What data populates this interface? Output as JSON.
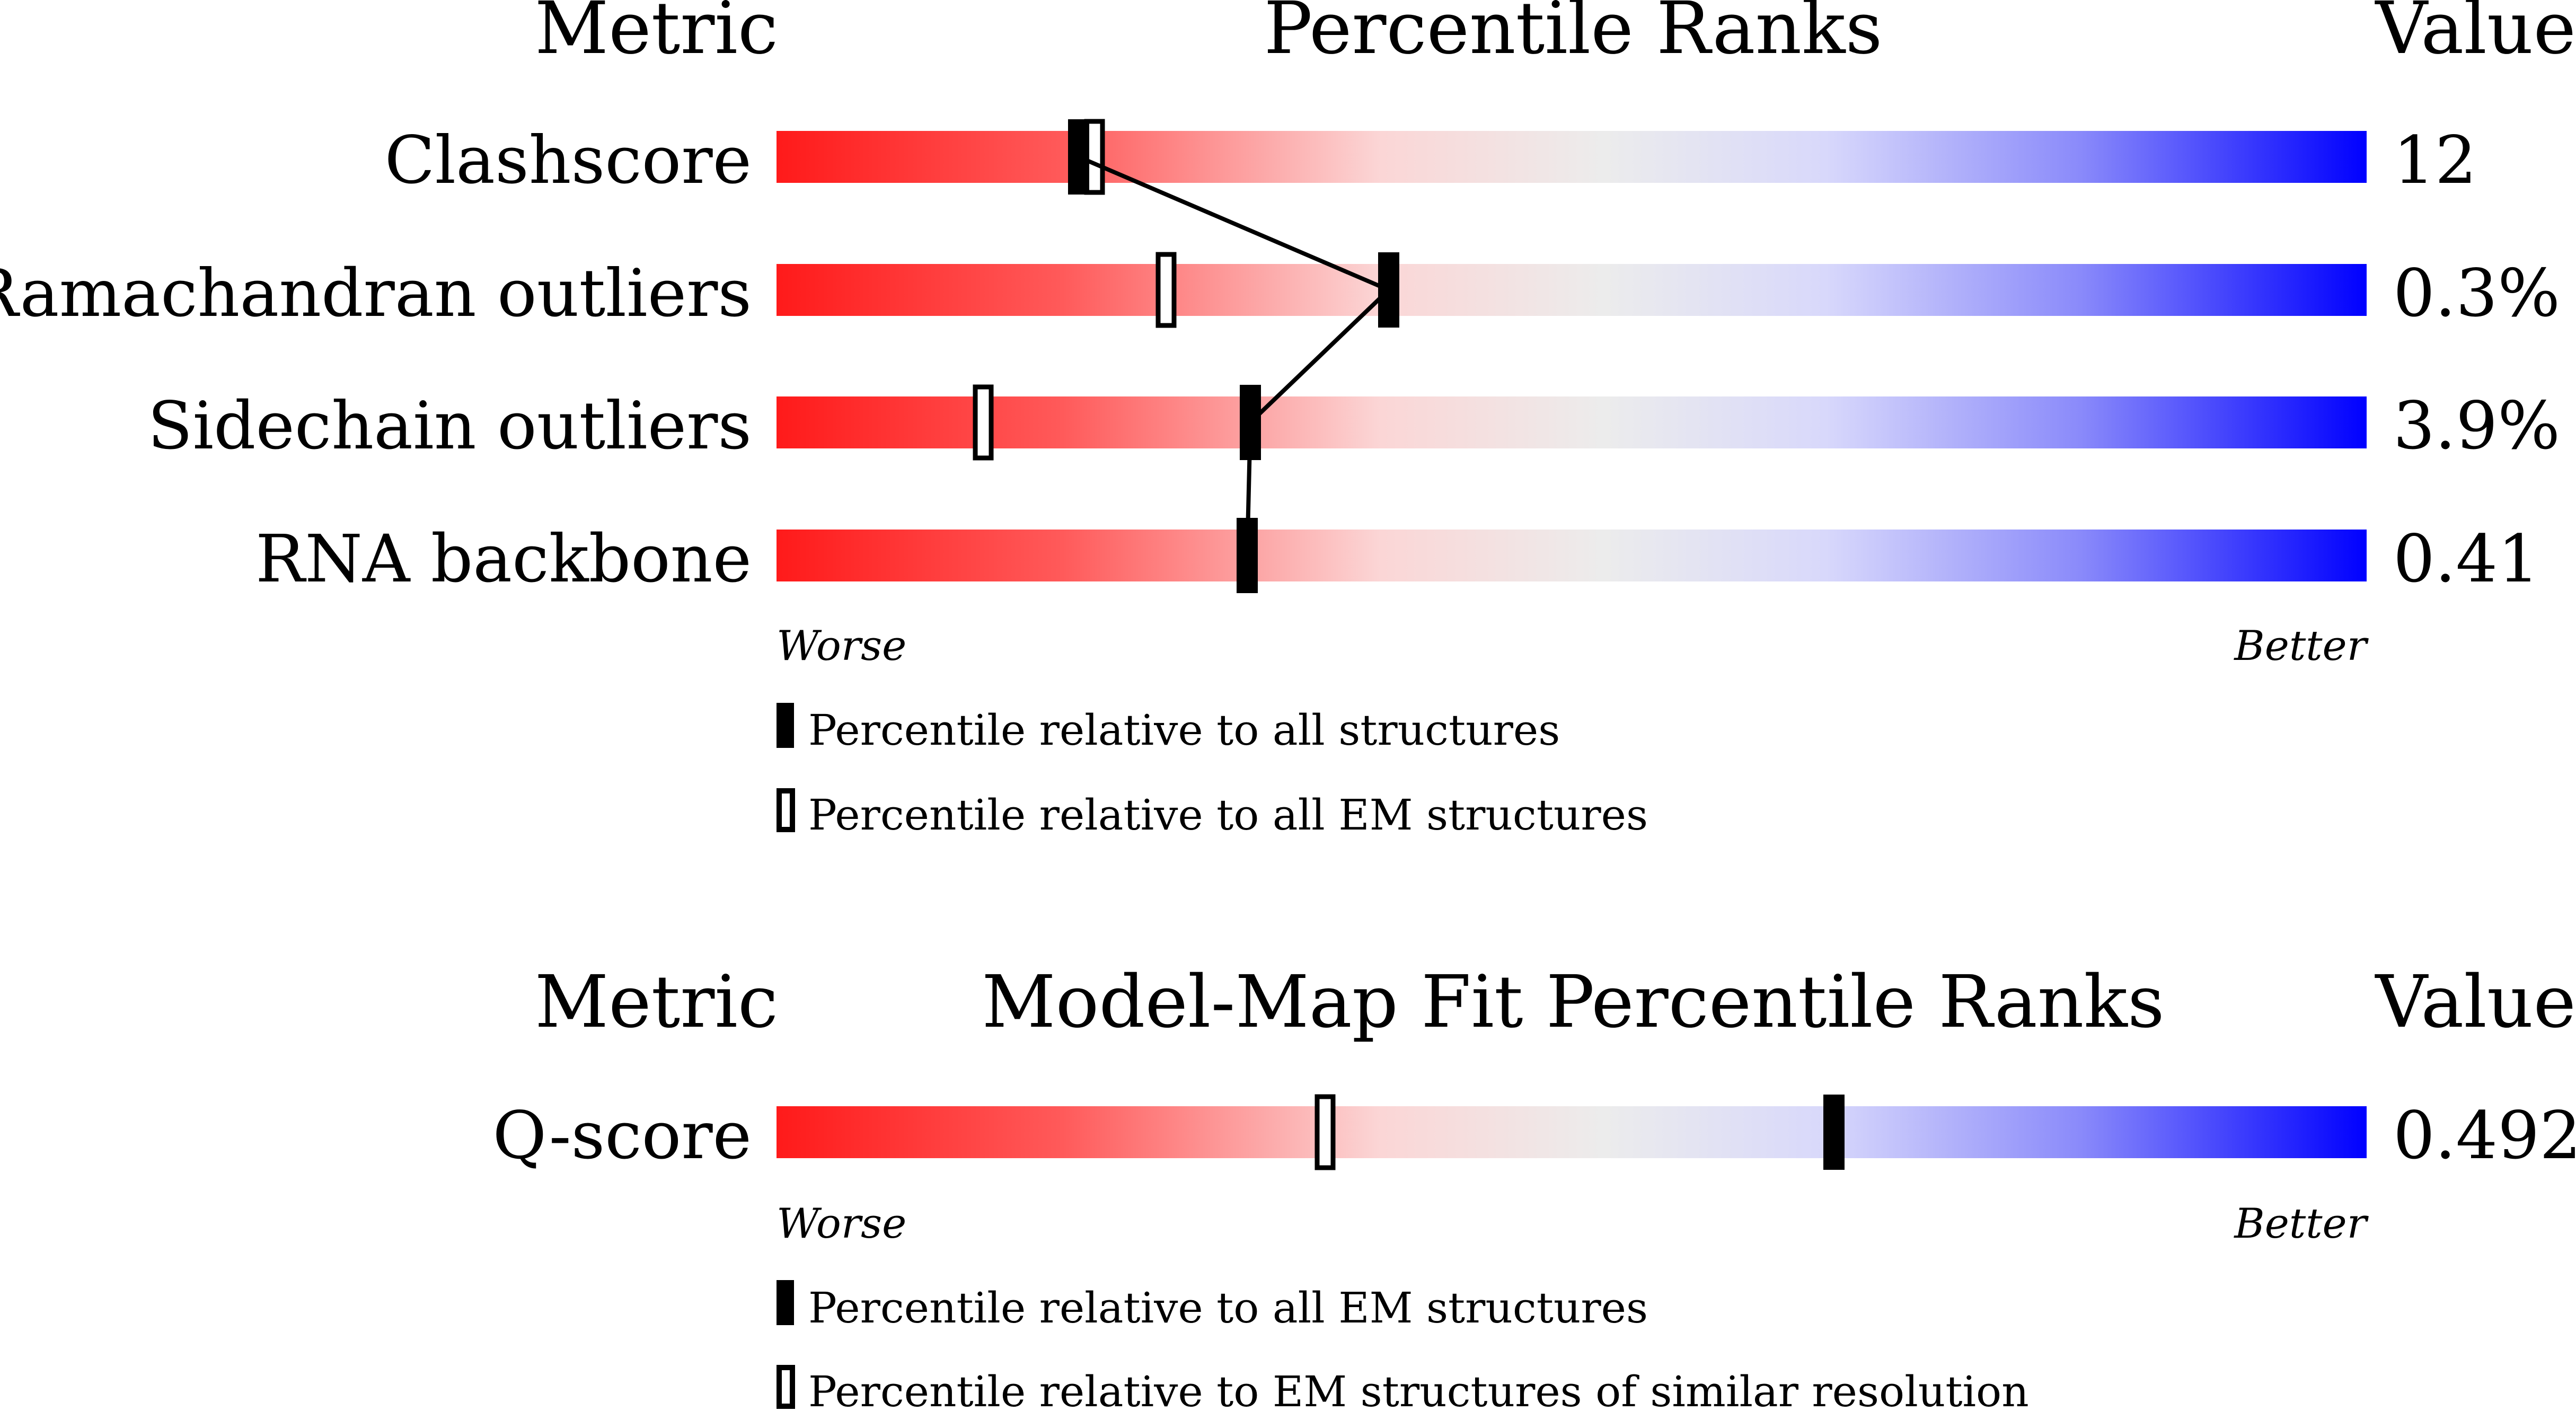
{
  "chart_data": [
    {
      "type": "percentile-slider",
      "headers": {
        "metric": "Metric",
        "title": "Percentile Ranks",
        "value": "Value"
      },
      "scale": {
        "min": 0,
        "max": 100,
        "worse_label": "Worse",
        "better_label": "Better"
      },
      "gradient_colors": [
        "#ff0000",
        "#eeeeee",
        "#0000ff"
      ],
      "rows": [
        {
          "metric": "Clashscore",
          "value": "12",
          "pct_all": 19,
          "pct_em": 20
        },
        {
          "metric": "Ramachandran outliers",
          "value": "0.3%",
          "pct_all": 38.5,
          "pct_em": 24.5
        },
        {
          "metric": "Sidechain outliers",
          "value": "3.9%",
          "pct_all": 29.8,
          "pct_em": 13
        },
        {
          "metric": "RNA backbone",
          "value": "0.41",
          "pct_all": 29.6,
          "pct_em": null
        }
      ],
      "legend": [
        {
          "marker": "filled",
          "label": "Percentile relative to all structures"
        },
        {
          "marker": "hollow",
          "label": "Percentile relative to all EM structures"
        }
      ]
    },
    {
      "type": "percentile-slider",
      "headers": {
        "metric": "Metric",
        "title": "Model-Map Fit Percentile Ranks",
        "value": "Value"
      },
      "scale": {
        "min": 0,
        "max": 100,
        "worse_label": "Worse",
        "better_label": "Better"
      },
      "gradient_colors": [
        "#ff0000",
        "#eeeeee",
        "#0000ff"
      ],
      "rows": [
        {
          "metric": "Q-score",
          "value": "0.492",
          "pct_all": 66.5,
          "pct_em": 34.5
        }
      ],
      "legend": [
        {
          "marker": "filled",
          "label": "Percentile relative to all EM structures"
        },
        {
          "marker": "hollow",
          "label": "Percentile relative to EM structures of similar resolution"
        }
      ]
    }
  ]
}
